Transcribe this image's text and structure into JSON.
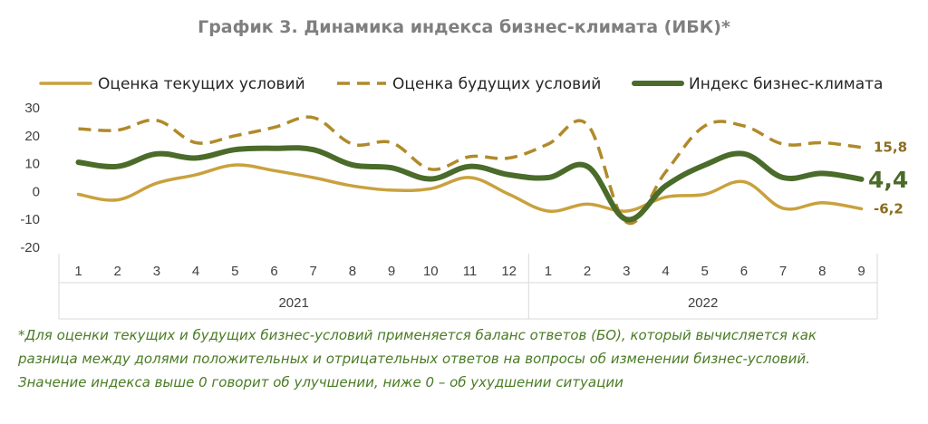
{
  "chart_data": {
    "type": "line",
    "title": "График 3. Динамика индекса бизнес-климата (ИБК)*",
    "years": [
      "2021",
      "2022"
    ],
    "categories": [
      "1",
      "2",
      "3",
      "4",
      "5",
      "6",
      "7",
      "8",
      "9",
      "10",
      "11",
      "12",
      "1",
      "2",
      "3",
      "4",
      "5",
      "6",
      "7",
      "8",
      "9"
    ],
    "ylim": [
      -20,
      30
    ],
    "yticks": [
      "30",
      "20",
      "10",
      "0",
      "-10",
      "-20"
    ],
    "legend_position": "top",
    "series": [
      {
        "name": "Оценка текущих условий",
        "color": "#c9a13d",
        "style": "solid",
        "values": [
          -1,
          -3,
          3,
          6,
          9.5,
          7.5,
          5,
          2,
          0.5,
          1,
          5,
          -1,
          -7,
          -4.5,
          -7,
          -2,
          -1,
          3.5,
          -6,
          -4,
          -6.2
        ],
        "end_label": "-6,2"
      },
      {
        "name": "Оценка будущих условий",
        "color": "#b08a2a",
        "style": "dashed",
        "values": [
          22.5,
          22,
          25.5,
          17.5,
          20,
          23,
          26.5,
          17,
          17.5,
          8,
          12.5,
          12,
          17,
          24,
          -11,
          7,
          23.5,
          23.5,
          17,
          17.5,
          15.8
        ],
        "end_label": "15,8"
      },
      {
        "name": "Индекс бизнес-климата",
        "color": "#4a6b2a",
        "style": "solid-thick",
        "values": [
          10.5,
          9,
          13.5,
          12,
          15,
          15.5,
          15,
          9.5,
          8.5,
          4.5,
          9,
          6,
          5,
          9,
          -10,
          2,
          9.5,
          13.5,
          5,
          6.5,
          4.4
        ],
        "end_label": "4,4"
      }
    ],
    "footnote": [
      "*Для оценки текущих и будущих бизнес-условий применяется баланс ответов (БО), который вычисляется как",
      "разница между долями положительных и отрицательных ответов на вопросы об изменении бизнес-условий.",
      "Значение индекса выше 0 говорит об улучшении, ниже 0 – об ухудшении ситуации"
    ]
  }
}
